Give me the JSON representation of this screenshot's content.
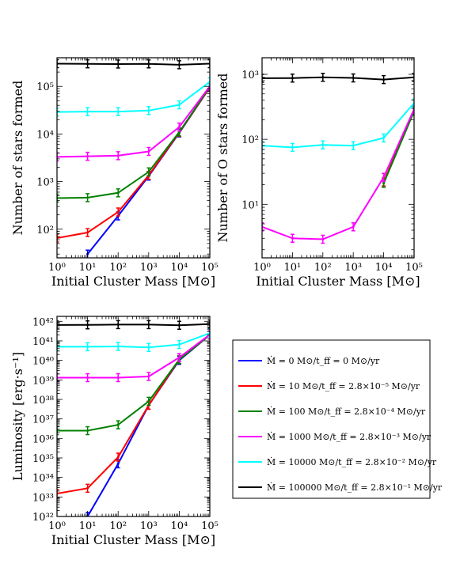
{
  "chart_data": [
    {
      "type": "line",
      "panel": "top-left",
      "xlabel": "Initial Cluster Mass [M⊙]",
      "ylabel": "Number of stars formed",
      "xscale": "log",
      "yscale": "log",
      "xlim": [
        1,
        100000
      ],
      "ylim": [
        25,
        400000
      ],
      "x_ticks": [
        {
          "v": 1,
          "t": "10⁰"
        },
        {
          "v": 10,
          "t": "10¹"
        },
        {
          "v": 100,
          "t": "10²"
        },
        {
          "v": 1000,
          "t": "10³"
        },
        {
          "v": 10000,
          "t": "10⁴"
        },
        {
          "v": 100000,
          "t": "10⁵"
        }
      ],
      "y_ticks": [
        {
          "v": 100,
          "t": "10²"
        },
        {
          "v": 1000,
          "t": "10³"
        },
        {
          "v": 10000,
          "t": "10⁴"
        },
        {
          "v": 100000,
          "t": "10⁵"
        }
      ],
      "series": [
        {
          "color": "#0000ff",
          "x": [
            10,
            100,
            1000,
            10000,
            100000
          ],
          "y": [
            30,
            190,
            1300,
            10500,
            95000
          ]
        },
        {
          "color": "#ff0000",
          "x": [
            1,
            10,
            100,
            1000,
            10000,
            100000
          ],
          "y": [
            65,
            85,
            230,
            1350,
            10800,
            95000
          ]
        },
        {
          "color": "#008000",
          "x": [
            1,
            10,
            100,
            1000,
            10000,
            100000
          ],
          "y": [
            450,
            460,
            580,
            1600,
            11000,
            97000
          ]
        },
        {
          "color": "#ff00ff",
          "x": [
            1,
            10,
            100,
            1000,
            10000,
            100000
          ],
          "y": [
            3300,
            3400,
            3500,
            4300,
            14000,
            100000
          ]
        },
        {
          "color": "#00ffff",
          "x": [
            1,
            10,
            100,
            1000,
            10000,
            100000
          ],
          "y": [
            29000,
            29500,
            29500,
            31000,
            41000,
            125000
          ]
        },
        {
          "color": "#000000",
          "x": [
            1,
            10,
            100,
            1000,
            10000,
            100000
          ],
          "y": [
            300000,
            298000,
            295000,
            297000,
            285000,
            300000
          ]
        }
      ]
    },
    {
      "type": "line",
      "panel": "top-right",
      "xlabel": "Initial Cluster Mass [M⊙]",
      "ylabel": "Number of O stars formed",
      "xscale": "log",
      "yscale": "log",
      "xlim": [
        1,
        100000
      ],
      "ylim": [
        1.5,
        1800
      ],
      "x_ticks": [
        {
          "v": 1,
          "t": "10⁰"
        },
        {
          "v": 10,
          "t": "10¹"
        },
        {
          "v": 100,
          "t": "10²"
        },
        {
          "v": 1000,
          "t": "10³"
        },
        {
          "v": 10000,
          "t": "10⁴"
        },
        {
          "v": 100000,
          "t": "10⁵"
        }
      ],
      "y_ticks": [
        {
          "v": 10,
          "t": "10¹"
        },
        {
          "v": 100,
          "t": "10²"
        },
        {
          "v": 1000,
          "t": "10³"
        }
      ],
      "series": [
        {
          "color": "#ff0000",
          "x": [
            10000,
            100000
          ],
          "y": [
            22,
            280
          ]
        },
        {
          "color": "#008000",
          "x": [
            10000,
            100000
          ],
          "y": [
            21,
            270
          ]
        },
        {
          "color": "#ff00ff",
          "x": [
            1,
            10,
            100,
            1000,
            10000,
            100000
          ],
          "y": [
            4.5,
            3.0,
            2.9,
            4.5,
            26,
            290
          ]
        },
        {
          "color": "#00ffff",
          "x": [
            1,
            10,
            100,
            1000,
            10000,
            100000
          ],
          "y": [
            80,
            75,
            82,
            80,
            105,
            360
          ]
        },
        {
          "color": "#000000",
          "x": [
            1,
            10,
            100,
            1000,
            10000,
            100000
          ],
          "y": [
            870,
            875,
            900,
            880,
            830,
            900
          ]
        }
      ]
    },
    {
      "type": "line",
      "panel": "bottom-left",
      "xlabel": "Initial Cluster Mass [M⊙]",
      "ylabel": "Luminosity [erg·s⁻¹]",
      "xscale": "log",
      "yscale": "log",
      "xlim": [
        1,
        100000
      ],
      "ylim": [
        1e+32,
        1.8e+42
      ],
      "x_ticks": [
        {
          "v": 1,
          "t": "10⁰"
        },
        {
          "v": 10,
          "t": "10¹"
        },
        {
          "v": 100,
          "t": "10²"
        },
        {
          "v": 1000,
          "t": "10³"
        },
        {
          "v": 10000,
          "t": "10⁴"
        },
        {
          "v": 100000,
          "t": "10⁵"
        }
      ],
      "y_ticks": [
        {
          "v": 1e+32,
          "t": "10³²"
        },
        {
          "v": 1e+33,
          "t": "10³³"
        },
        {
          "v": 1e+34,
          "t": "10³⁴"
        },
        {
          "v": 1e+35,
          "t": "10³⁵"
        },
        {
          "v": 1e+36,
          "t": "10³⁶"
        },
        {
          "v": 1e+37,
          "t": "10³⁷"
        },
        {
          "v": 1e+38,
          "t": "10³⁸"
        },
        {
          "v": 1e+39,
          "t": "10³⁹"
        },
        {
          "v": 1e+40,
          "t": "10⁴⁰"
        },
        {
          "v": 1e+41,
          "t": "10⁴¹"
        },
        {
          "v": 1e+42,
          "t": "10⁴²"
        }
      ],
      "series": [
        {
          "color": "#0000ff",
          "x": [
            10,
            100,
            1000,
            10000,
            100000
          ],
          "y": [
            1e+32,
            5e+34,
            5e+37,
            1e+40,
            2e+41
          ]
        },
        {
          "color": "#ff0000",
          "x": [
            1,
            10,
            100,
            1000,
            10000,
            100000
          ],
          "y": [
            1.5e+33,
            2.8e+33,
            1.1e+35,
            5e+37,
            1.1e+40,
            2e+41
          ]
        },
        {
          "color": "#008000",
          "x": [
            1,
            10,
            100,
            1000,
            10000,
            100000
          ],
          "y": [
            2.5e+36,
            2.5e+36,
            5e+36,
            8e+37,
            1.1e+40,
            2e+41
          ]
        },
        {
          "color": "#ff00ff",
          "x": [
            1,
            10,
            100,
            1000,
            10000,
            100000
          ],
          "y": [
            1.3e+39,
            1.3e+39,
            1.3e+39,
            1.5e+39,
            1.4e+40,
            2.1e+41
          ]
        },
        {
          "color": "#00ffff",
          "x": [
            1,
            10,
            100,
            1000,
            10000,
            100000
          ],
          "y": [
            5e+40,
            5e+40,
            5.2e+40,
            4.6e+40,
            6.5e+40,
            2.5e+41
          ]
        },
        {
          "color": "#000000",
          "x": [
            1,
            10,
            100,
            1000,
            10000,
            100000
          ],
          "y": [
            6.5e+41,
            6.6e+41,
            6.8e+41,
            6.8e+41,
            6.3e+41,
            7.3e+41
          ]
        }
      ]
    }
  ],
  "legend": [
    {
      "color": "#0000ff",
      "label": "Ṁ = 0 M⊙/t_ff = 0 M⊙/yr"
    },
    {
      "color": "#ff0000",
      "label": "Ṁ = 10 M⊙/t_ff = 2.8×10⁻⁵ M⊙/yr"
    },
    {
      "color": "#008000",
      "label": "Ṁ = 100 M⊙/t_ff = 2.8×10⁻⁴ M⊙/yr"
    },
    {
      "color": "#ff00ff",
      "label": "Ṁ = 1000 M⊙/t_ff = 2.8×10⁻³ M⊙/yr"
    },
    {
      "color": "#00ffff",
      "label": "Ṁ = 10000 M⊙/t_ff = 2.8×10⁻² M⊙/yr"
    },
    {
      "color": "#000000",
      "label": "Ṁ = 100000 M⊙/t_ff = 2.8×10⁻¹ M⊙/yr"
    }
  ]
}
